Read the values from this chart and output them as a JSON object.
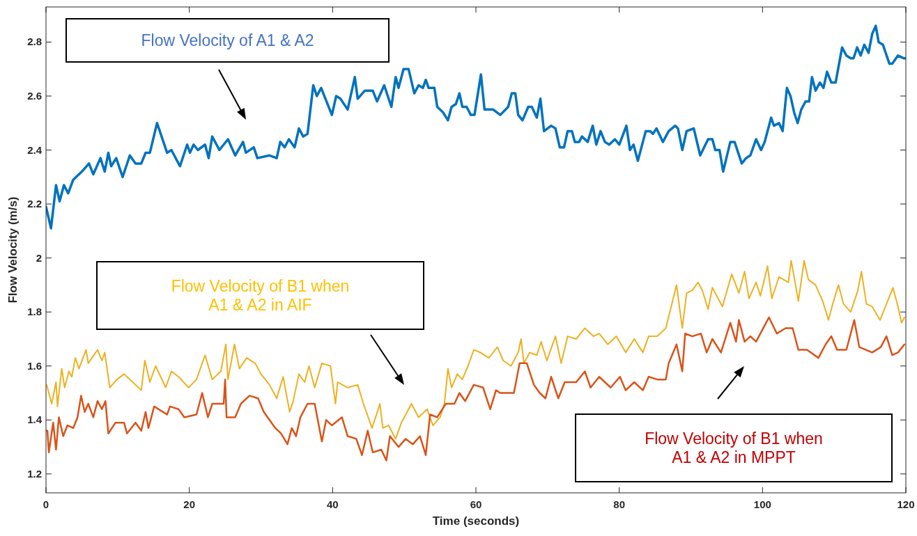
{
  "chart_data": {
    "type": "line",
    "xlabel": "Time (seconds)",
    "ylabel": "Flow Velocity (m/s)",
    "xlim": [
      0,
      120
    ],
    "ylim": [
      1.13,
      2.93
    ],
    "xticks": [
      0,
      20,
      40,
      60,
      80,
      100,
      120
    ],
    "yticks": [
      1.2,
      1.4,
      1.6,
      1.8,
      2,
      2.2,
      2.4,
      2.6,
      2.8
    ],
    "grid": false,
    "line_style": "solid",
    "marker": "none",
    "series": [
      {
        "color": "#0072bd",
        "x": [
          0,
          0.7,
          1.4,
          1.9,
          2.5,
          3.1,
          3.8,
          5.0,
          6.0,
          6.6,
          7.6,
          8.2,
          8.7,
          9.1,
          9.8,
          10.7,
          11.7,
          12.5,
          13.3,
          13.9,
          14.5,
          15.5,
          16.9,
          17.5,
          18.7,
          19.7,
          20.1,
          20.6,
          21.2,
          22.2,
          22.7,
          23.2,
          24.2,
          25.4,
          26.4,
          27.5,
          27.9,
          29.0,
          29.5,
          31.2,
          32.2,
          32.7,
          33.3,
          33.9,
          34.7,
          35.3,
          35.9,
          36.5,
          37.3,
          37.8,
          38.4,
          39.9,
          40.5,
          41.1,
          42.1,
          43.1,
          43.5,
          44.5,
          45.6,
          46.2,
          47.2,
          48.2,
          48.8,
          49.2,
          49.9,
          50.6,
          51.4,
          52.0,
          52.6,
          53.0,
          53.4,
          54.2,
          54.6,
          55.4,
          56.1,
          56.6,
          57.2,
          57.7,
          58.1,
          58.7,
          59.3,
          59.8,
          60.7,
          61.2,
          62.4,
          63.4,
          64.5,
          65.0,
          65.5,
          65.9,
          66.5,
          67.3,
          67.8,
          68.5,
          69.0,
          69.5,
          70.5,
          71.1,
          71.7,
          72.3,
          72.8,
          73.4,
          73.8,
          74.4,
          74.8,
          75.6,
          76.3,
          76.8,
          77.4,
          78.0,
          78.6,
          79.4,
          80.0,
          81.0,
          81.5,
          82.0,
          82.6,
          83.1,
          83.7,
          84.3,
          84.7,
          85.2,
          86.1,
          86.9,
          87.8,
          88.2,
          88.8,
          89.4,
          90.4,
          91.3,
          92.4,
          93.0,
          93.4,
          94.0,
          94.5,
          95.5,
          96.1,
          97.1,
          97.7,
          98.3,
          99.1,
          99.8,
          100.3,
          101.2,
          101.6,
          102.3,
          102.8,
          103.4,
          103.9,
          104.4,
          104.9,
          105.4,
          106.0,
          106.5,
          106.9,
          107.4,
          108.0,
          108.5,
          109.0,
          109.6,
          110.2,
          111.1,
          111.7,
          112.3,
          112.7,
          113.2,
          113.7,
          114.2,
          114.8,
          115.3,
          115.8,
          116.2,
          116.8,
          117.7,
          118.1,
          118.9,
          119.7,
          120
        ],
        "values": [
          2.19,
          2.11,
          2.27,
          2.21,
          2.27,
          2.24,
          2.29,
          2.32,
          2.35,
          2.31,
          2.37,
          2.32,
          2.39,
          2.34,
          2.37,
          2.3,
          2.38,
          2.35,
          2.35,
          2.39,
          2.39,
          2.5,
          2.39,
          2.4,
          2.34,
          2.42,
          2.39,
          2.42,
          2.4,
          2.42,
          2.37,
          2.45,
          2.4,
          2.44,
          2.38,
          2.43,
          2.39,
          2.41,
          2.37,
          2.38,
          2.37,
          2.43,
          2.41,
          2.44,
          2.41,
          2.48,
          2.45,
          2.46,
          2.64,
          2.6,
          2.63,
          2.53,
          2.6,
          2.59,
          2.55,
          2.67,
          2.59,
          2.62,
          2.62,
          2.58,
          2.64,
          2.56,
          2.67,
          2.63,
          2.7,
          2.7,
          2.61,
          2.64,
          2.63,
          2.66,
          2.63,
          2.63,
          2.56,
          2.54,
          2.51,
          2.56,
          2.57,
          2.61,
          2.56,
          2.56,
          2.53,
          2.53,
          2.68,
          2.55,
          2.55,
          2.53,
          2.56,
          2.61,
          2.61,
          2.53,
          2.51,
          2.56,
          2.56,
          2.52,
          2.59,
          2.47,
          2.49,
          2.48,
          2.41,
          2.41,
          2.47,
          2.47,
          2.43,
          2.43,
          2.45,
          2.43,
          2.49,
          2.42,
          2.47,
          2.43,
          2.42,
          2.44,
          2.42,
          2.49,
          2.4,
          2.42,
          2.36,
          2.41,
          2.47,
          2.47,
          2.46,
          2.48,
          2.43,
          2.47,
          2.49,
          2.48,
          2.4,
          2.47,
          2.48,
          2.38,
          2.44,
          2.44,
          2.4,
          2.4,
          2.32,
          2.43,
          2.43,
          2.35,
          2.37,
          2.38,
          2.44,
          2.4,
          2.43,
          2.52,
          2.49,
          2.5,
          2.47,
          2.63,
          2.6,
          2.54,
          2.5,
          2.55,
          2.58,
          2.58,
          2.67,
          2.62,
          2.65,
          2.63,
          2.69,
          2.65,
          2.65,
          2.78,
          2.75,
          2.74,
          2.74,
          2.78,
          2.75,
          2.79,
          2.76,
          2.83,
          2.86,
          2.8,
          2.79,
          2.72,
          2.72,
          2.75,
          2.74,
          2.74
        ]
      },
      {
        "color": "#edb120",
        "x": [
          0.1,
          0.8,
          1.4,
          1.6,
          2.2,
          2.6,
          3.2,
          3.6,
          4.1,
          4.6,
          5.6,
          5.9,
          7.2,
          7.8,
          8.2,
          8.9,
          9.9,
          10.9,
          12.1,
          13.3,
          13.8,
          14.5,
          15.3,
          16.7,
          17.5,
          18.5,
          19.9,
          21.0,
          22.2,
          23.2,
          24.4,
          25.1,
          25.4,
          26.3,
          27.0,
          28.0,
          29.2,
          30.0,
          31.2,
          32.2,
          33.1,
          34.0,
          34.5,
          35.3,
          36.1,
          36.7,
          37.5,
          38.5,
          39.7,
          40.4,
          40.7,
          42.1,
          43.5,
          44.3,
          45.5,
          46.0,
          46.6,
          47.0,
          47.8,
          48.8,
          49.6,
          51.0,
          52.0,
          53.2,
          54.0,
          55.0,
          55.6,
          56.1,
          56.6,
          57.4,
          58.1,
          58.9,
          59.7,
          60.6,
          61.8,
          63.0,
          63.8,
          64.9,
          65.9,
          66.3,
          66.7,
          67.5,
          68.5,
          69.1,
          69.9,
          71.1,
          71.9,
          72.8,
          74.0,
          75.2,
          76.4,
          77.2,
          78.4,
          79.6,
          80.9,
          82.1,
          83.3,
          84.1,
          85.3,
          86.5,
          88.0,
          88.8,
          89.4,
          90.2,
          91.0,
          91.6,
          92.4,
          93.0,
          94.4,
          95.7,
          96.7,
          97.5,
          98.1,
          99.1,
          99.7,
          100.7,
          101.3,
          102.3,
          103.6,
          104.0,
          105.0,
          105.8,
          106.4,
          107.4,
          108.4,
          109.2,
          109.8,
          110.6,
          111.3,
          112.3,
          113.3,
          113.8,
          114.5,
          115.3,
          116.4,
          117.3,
          118.2,
          118.9,
          119.4,
          119.8
        ],
        "values": [
          1.53,
          1.46,
          1.54,
          1.45,
          1.59,
          1.52,
          1.58,
          1.56,
          1.63,
          1.59,
          1.66,
          1.61,
          1.66,
          1.62,
          1.65,
          1.52,
          1.55,
          1.57,
          1.54,
          1.51,
          1.62,
          1.54,
          1.6,
          1.52,
          1.58,
          1.56,
          1.52,
          1.55,
          1.64,
          1.55,
          1.58,
          1.68,
          1.55,
          1.68,
          1.59,
          1.63,
          1.61,
          1.57,
          1.53,
          1.48,
          1.56,
          1.43,
          1.47,
          1.57,
          1.54,
          1.6,
          1.52,
          1.61,
          1.6,
          1.46,
          1.54,
          1.52,
          1.53,
          1.46,
          1.37,
          1.41,
          1.46,
          1.37,
          1.38,
          1.33,
          1.39,
          1.46,
          1.41,
          1.44,
          1.38,
          1.41,
          1.46,
          1.59,
          1.52,
          1.57,
          1.55,
          1.6,
          1.66,
          1.65,
          1.63,
          1.67,
          1.62,
          1.6,
          1.65,
          1.7,
          1.61,
          1.65,
          1.64,
          1.69,
          1.62,
          1.71,
          1.61,
          1.71,
          1.7,
          1.74,
          1.71,
          1.72,
          1.68,
          1.71,
          1.65,
          1.7,
          1.65,
          1.71,
          1.71,
          1.74,
          1.9,
          1.74,
          1.87,
          1.88,
          1.91,
          1.88,
          1.81,
          1.89,
          1.82,
          1.94,
          1.87,
          1.95,
          1.85,
          1.91,
          1.86,
          1.97,
          1.85,
          1.93,
          1.91,
          1.99,
          1.84,
          1.99,
          1.92,
          1.9,
          1.84,
          1.77,
          1.83,
          1.9,
          1.83,
          1.8,
          1.88,
          1.95,
          1.83,
          1.82,
          1.77,
          1.83,
          1.89,
          1.82,
          1.76,
          1.78
        ]
      },
      {
        "color": "#d95319",
        "x": [
          0,
          0.2,
          0.4,
          1.0,
          1.4,
          1.8,
          2.4,
          3.0,
          3.8,
          4.4,
          4.9,
          5.4,
          5.9,
          6.6,
          7.2,
          7.8,
          8.3,
          8.7,
          9.7,
          10.9,
          11.3,
          12.5,
          13.3,
          13.9,
          14.3,
          15.1,
          16.9,
          17.3,
          18.5,
          19.3,
          21.0,
          21.8,
          22.6,
          23.2,
          24.8,
          25.0,
          25.2,
          26.4,
          27.2,
          28.4,
          29.6,
          30.4,
          32.0,
          32.8,
          33.7,
          34.3,
          34.9,
          35.5,
          36.5,
          37.5,
          38.5,
          39.1,
          39.9,
          41.3,
          42.1,
          43.3,
          44.1,
          44.9,
          45.6,
          46.8,
          47.5,
          48.0,
          49.2,
          50.2,
          51.2,
          52.2,
          53.0,
          53.6,
          54.6,
          55.8,
          57.0,
          57.7,
          58.5,
          59.7,
          61.0,
          62.0,
          62.8,
          63.4,
          65.3,
          66.1,
          67.1,
          68.1,
          68.9,
          69.7,
          70.5,
          71.5,
          72.4,
          74.0,
          75.2,
          76.0,
          77.2,
          78.8,
          80.1,
          80.9,
          82.1,
          83.3,
          84.1,
          85.3,
          86.5,
          86.9,
          88.0,
          88.8,
          89.2,
          90.2,
          91.4,
          92.2,
          93.0,
          94.2,
          95.5,
          96.3,
          96.7,
          97.5,
          98.3,
          99.1,
          100.1,
          100.9,
          102.0,
          103.2,
          104.2,
          105.0,
          106.2,
          107.8,
          108.8,
          109.6,
          110.4,
          111.7,
          112.8,
          113.5,
          115.3,
          116.5,
          117.3,
          118.1,
          118.9,
          119.8
        ],
        "values": [
          1.36,
          1.36,
          1.28,
          1.39,
          1.29,
          1.41,
          1.34,
          1.38,
          1.37,
          1.41,
          1.49,
          1.43,
          1.46,
          1.41,
          1.47,
          1.44,
          1.47,
          1.35,
          1.39,
          1.39,
          1.35,
          1.39,
          1.36,
          1.43,
          1.37,
          1.45,
          1.42,
          1.45,
          1.44,
          1.41,
          1.42,
          1.5,
          1.41,
          1.46,
          1.46,
          1.55,
          1.41,
          1.41,
          1.46,
          1.49,
          1.48,
          1.43,
          1.37,
          1.35,
          1.31,
          1.37,
          1.34,
          1.41,
          1.46,
          1.46,
          1.32,
          1.4,
          1.38,
          1.41,
          1.34,
          1.33,
          1.27,
          1.36,
          1.28,
          1.29,
          1.25,
          1.34,
          1.3,
          1.33,
          1.31,
          1.34,
          1.27,
          1.42,
          1.41,
          1.46,
          1.46,
          1.5,
          1.47,
          1.53,
          1.52,
          1.44,
          1.51,
          1.5,
          1.5,
          1.61,
          1.61,
          1.53,
          1.5,
          1.48,
          1.56,
          1.48,
          1.54,
          1.54,
          1.58,
          1.52,
          1.56,
          1.52,
          1.56,
          1.51,
          1.54,
          1.51,
          1.56,
          1.55,
          1.55,
          1.61,
          1.68,
          1.58,
          1.72,
          1.71,
          1.72,
          1.65,
          1.7,
          1.65,
          1.76,
          1.69,
          1.77,
          1.69,
          1.71,
          1.69,
          1.74,
          1.78,
          1.72,
          1.74,
          1.74,
          1.66,
          1.66,
          1.63,
          1.68,
          1.71,
          1.66,
          1.66,
          1.77,
          1.67,
          1.65,
          1.67,
          1.71,
          1.64,
          1.65,
          1.68
        ]
      }
    ],
    "annotations": [
      "Flow Velocity of A1 & A2",
      "Flow Velocity of B1 when A1 & A2 in AIF",
      "Flow Velocity of B1 when A1 & A2 in MPPT"
    ]
  }
}
